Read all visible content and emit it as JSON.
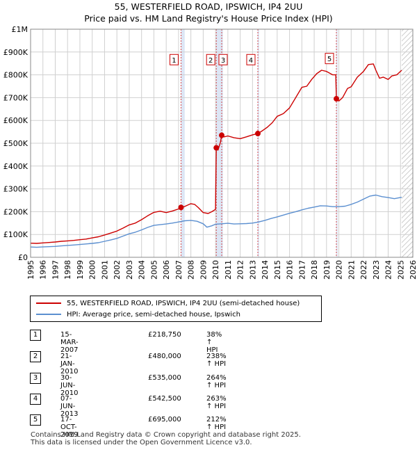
{
  "header": {
    "title": "55, WESTERFIELD ROAD, IPSWICH, IP4 2UU",
    "subtitle": "Price paid vs. HM Land Registry's House Price Index (HPI)"
  },
  "legend": {
    "items": [
      {
        "label": "55, WESTERFIELD ROAD, IPSWICH, IP4 2UU (semi-detached house)",
        "color": "#cc0000"
      },
      {
        "label": "HPI: Average price, semi-detached house, Ipswich",
        "color": "#5b8fd0"
      }
    ]
  },
  "transactions": [
    {
      "num": "1",
      "date": "15-MAR-2007",
      "price": "£218,750",
      "hpi": "38% ↑ HPI"
    },
    {
      "num": "2",
      "date": "21-JAN-2010",
      "price": "£480,000",
      "hpi": "238% ↑ HPI"
    },
    {
      "num": "3",
      "date": "30-JUN-2010",
      "price": "£535,000",
      "hpi": "264% ↑ HPI"
    },
    {
      "num": "4",
      "date": "07-JUN-2013",
      "price": "£542,500",
      "hpi": "263% ↑ HPI"
    },
    {
      "num": "5",
      "date": "17-OCT-2019",
      "price": "£695,000",
      "hpi": "212% ↑ HPI"
    }
  ],
  "footer": {
    "line1": "Contains HM Land Registry data © Crown copyright and database right 2025.",
    "line2": "This data is licensed under the Open Government Licence v3.0."
  },
  "chart_data": {
    "type": "line",
    "title": "55, WESTERFIELD ROAD, IPSWICH, IP4 2UU",
    "subtitle": "Price paid vs. HM Land Registry's House Price Index (HPI)",
    "xlim": [
      1995,
      2026
    ],
    "ylim": [
      0,
      1000000
    ],
    "x_ticks": [
      "1995",
      "1996",
      "1997",
      "1998",
      "1999",
      "2000",
      "2001",
      "2002",
      "2003",
      "2004",
      "2005",
      "2006",
      "2007",
      "2008",
      "2009",
      "2010",
      "2011",
      "2012",
      "2013",
      "2014",
      "2015",
      "2016",
      "2017",
      "2018",
      "2019",
      "2020",
      "2021",
      "2022",
      "2023",
      "2024",
      "2025",
      "2026"
    ],
    "y_ticks": [
      {
        "value": 0,
        "label": "£0"
      },
      {
        "value": 100000,
        "label": "£100K"
      },
      {
        "value": 200000,
        "label": "£200K"
      },
      {
        "value": 300000,
        "label": "£300K"
      },
      {
        "value": 400000,
        "label": "£400K"
      },
      {
        "value": 500000,
        "label": "£500K"
      },
      {
        "value": 600000,
        "label": "£600K"
      },
      {
        "value": 700000,
        "label": "£700K"
      },
      {
        "value": 800000,
        "label": "£800K"
      },
      {
        "value": 900000,
        "label": "£900K"
      },
      {
        "value": 1000000,
        "label": "£1M"
      }
    ],
    "shaded_regions": [
      [
        2007.2,
        2007.5
      ],
      [
        2010.05,
        2010.6
      ],
      [
        2013.42,
        2013.5
      ],
      [
        2019.79,
        2019.9
      ]
    ],
    "hatched_region": [
      2025.1,
      2026
    ],
    "series": [
      {
        "name": "55, WESTERFIELD ROAD, IPSWICH, IP4 2UU (semi-detached house)",
        "color": "#cc0000",
        "x": [
          1995.0,
          1995.5,
          1996.0,
          1996.5,
          1997.0,
          1997.5,
          1998.0,
          1998.5,
          1999.0,
          1999.5,
          2000.0,
          2000.5,
          2001.0,
          2001.5,
          2002.0,
          2002.5,
          2003.0,
          2003.5,
          2004.0,
          2004.5,
          2005.0,
          2005.5,
          2006.0,
          2006.5,
          2007.0,
          2007.2,
          2007.5,
          2008.0,
          2008.3,
          2008.6,
          2009.0,
          2009.4,
          2009.7,
          2010.0,
          2010.06,
          2010.2,
          2010.4,
          2010.5,
          2010.7,
          2011.0,
          2011.5,
          2012.0,
          2012.5,
          2013.0,
          2013.43,
          2013.8,
          2014.2,
          2014.6,
          2015.0,
          2015.5,
          2016.0,
          2016.5,
          2017.0,
          2017.4,
          2017.8,
          2018.2,
          2018.6,
          2019.0,
          2019.5,
          2019.75,
          2019.8,
          2020.0,
          2020.3,
          2020.7,
          2021.0,
          2021.5,
          2022.0,
          2022.4,
          2022.8,
          2023.0,
          2023.3,
          2023.6,
          2024.0,
          2024.3,
          2024.7,
          2025.1
        ],
        "values": [
          62000,
          61000,
          63000,
          65000,
          67000,
          70000,
          72000,
          74000,
          77000,
          80000,
          85000,
          90000,
          98000,
          106000,
          115000,
          128000,
          142000,
          150000,
          165000,
          182000,
          197000,
          202000,
          196000,
          203000,
          212000,
          218750,
          223000,
          235000,
          232000,
          218000,
          196000,
          192000,
          200000,
          210000,
          480000,
          470000,
          505000,
          535000,
          528000,
          532000,
          524000,
          520000,
          528000,
          537000,
          542500,
          555000,
          570000,
          590000,
          618000,
          630000,
          655000,
          700000,
          745000,
          750000,
          780000,
          805000,
          820000,
          815000,
          800000,
          800000,
          695000,
          685000,
          700000,
          740000,
          748000,
          790000,
          815000,
          845000,
          848000,
          820000,
          785000,
          790000,
          780000,
          795000,
          800000,
          820000
        ]
      },
      {
        "name": "HPI: Average price, semi-detached house, Ipswich",
        "color": "#5b8fd0",
        "x": [
          1995.0,
          1995.5,
          1996.0,
          1996.5,
          1997.0,
          1997.5,
          1998.0,
          1998.5,
          1999.0,
          1999.5,
          2000.0,
          2000.5,
          2001.0,
          2001.5,
          2002.0,
          2002.5,
          2003.0,
          2003.5,
          2004.0,
          2004.5,
          2005.0,
          2005.5,
          2006.0,
          2006.5,
          2007.0,
          2007.5,
          2008.0,
          2008.5,
          2009.0,
          2009.3,
          2009.7,
          2010.0,
          2010.5,
          2011.0,
          2011.5,
          2012.0,
          2012.5,
          2013.0,
          2013.5,
          2014.0,
          2014.5,
          2015.0,
          2015.5,
          2016.0,
          2016.5,
          2017.0,
          2017.5,
          2018.0,
          2018.5,
          2019.0,
          2019.5,
          2020.0,
          2020.5,
          2021.0,
          2021.5,
          2022.0,
          2022.5,
          2023.0,
          2023.5,
          2024.0,
          2024.5,
          2025.1
        ],
        "values": [
          45000,
          44000,
          45500,
          46500,
          48000,
          50000,
          52000,
          54000,
          56000,
          58500,
          61000,
          64000,
          70000,
          76000,
          83000,
          93000,
          103000,
          110000,
          120000,
          131000,
          140000,
          143000,
          146000,
          150000,
          155000,
          160000,
          162000,
          158000,
          147000,
          132000,
          138000,
          145000,
          147000,
          149000,
          146000,
          147000,
          148000,
          150000,
          155000,
          162000,
          170000,
          177000,
          185000,
          193000,
          200000,
          208000,
          215000,
          220000,
          226000,
          225000,
          222000,
          222000,
          224000,
          232000,
          242000,
          255000,
          268000,
          273000,
          266000,
          262000,
          257000,
          263000
        ]
      }
    ],
    "sales": [
      {
        "label": "1",
        "x": 2007.2,
        "value": 218750
      },
      {
        "label": "2",
        "x": 2010.06,
        "value": 480000
      },
      {
        "label": "3",
        "x": 2010.5,
        "value": 535000
      },
      {
        "label": "4",
        "x": 2013.43,
        "value": 542500
      },
      {
        "label": "5",
        "x": 2019.8,
        "value": 695000
      }
    ]
  }
}
